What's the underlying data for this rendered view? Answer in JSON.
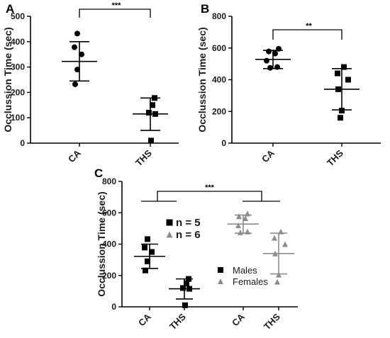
{
  "chart_data": [
    {
      "panel": "A",
      "type": "scatter",
      "ylabel": "Occlussion Time (sec)",
      "ylim": [
        0,
        500
      ],
      "yticks": [
        0,
        100,
        200,
        300,
        400,
        500
      ],
      "categories": [
        "CA",
        "THS"
      ],
      "groups": [
        {
          "category": "CA",
          "marker": "circle",
          "color": "#000000",
          "points": [
            432,
            378,
            350,
            290,
            232
          ],
          "mean": 322,
          "sd_low": 245,
          "sd_high": 400
        },
        {
          "category": "THS",
          "marker": "square",
          "color": "#000000",
          "points": [
            178,
            150,
            120,
            115,
            10
          ],
          "mean": 115,
          "sd_low": 50,
          "sd_high": 178
        }
      ],
      "significance": {
        "from": 0,
        "to": 1,
        "label": "***"
      }
    },
    {
      "panel": "B",
      "type": "scatter",
      "ylabel": "Occlussion Time (sec)",
      "ylim": [
        0,
        800
      ],
      "yticks": [
        0,
        200,
        400,
        600,
        800
      ],
      "categories": [
        "CA",
        "THS"
      ],
      "groups": [
        {
          "category": "CA",
          "marker": "circle",
          "color": "#000000",
          "points": [
            595,
            578,
            565,
            520,
            480,
            475
          ],
          "mean": 528,
          "sd_low": 470,
          "sd_high": 585
        },
        {
          "category": "THS",
          "marker": "square",
          "color": "#000000",
          "points": [
            480,
            440,
            400,
            340,
            205,
            160
          ],
          "mean": 340,
          "sd_low": 210,
          "sd_high": 470
        },
        {
          "category": "THS",
          "marker": "square",
          "color": "#000000",
          "points": [],
          "mean": null,
          "sd_low": null,
          "sd_high": null
        }
      ],
      "significance": {
        "from": 0,
        "to": 1,
        "label": "**"
      }
    },
    {
      "panel": "C",
      "type": "scatter",
      "ylabel": "Occlussion Time (sec)",
      "ylim": [
        0,
        800
      ],
      "yticks": [
        0,
        200,
        400,
        600,
        800
      ],
      "categories": [
        "CA",
        "THS",
        "CA",
        "THS"
      ],
      "groups": [
        {
          "category": "CA",
          "marker": "square",
          "color": "#000000",
          "points": [
            432,
            378,
            350,
            290,
            232
          ],
          "mean": 322,
          "sd_low": 245,
          "sd_high": 400
        },
        {
          "category": "THS",
          "marker": "square",
          "color": "#000000",
          "points": [
            178,
            150,
            120,
            115,
            10
          ],
          "mean": 115,
          "sd_low": 50,
          "sd_high": 178
        },
        {
          "category": "CA",
          "marker": "triangle",
          "color": "#8c8c8c",
          "points": [
            595,
            578,
            565,
            520,
            480,
            475
          ],
          "mean": 528,
          "sd_low": 470,
          "sd_high": 585
        },
        {
          "category": "THS",
          "marker": "triangle",
          "color": "#8c8c8c",
          "points": [
            480,
            440,
            400,
            340,
            205,
            160
          ],
          "mean": 340,
          "sd_low": 210,
          "sd_high": 470
        }
      ],
      "n_labels": [
        {
          "marker": "square",
          "color": "#000000",
          "text": "n = 5"
        },
        {
          "marker": "triangle",
          "color": "#8c8c8c",
          "text": "n = 6"
        }
      ],
      "legend": [
        {
          "marker": "square",
          "color": "#000000",
          "text": "Males"
        },
        {
          "marker": "triangle",
          "color": "#8c8c8c",
          "text": "Females"
        }
      ],
      "significance": {
        "label": "***",
        "pairs": [
          [
            0,
            1
          ],
          [
            2,
            3
          ]
        ]
      }
    }
  ]
}
